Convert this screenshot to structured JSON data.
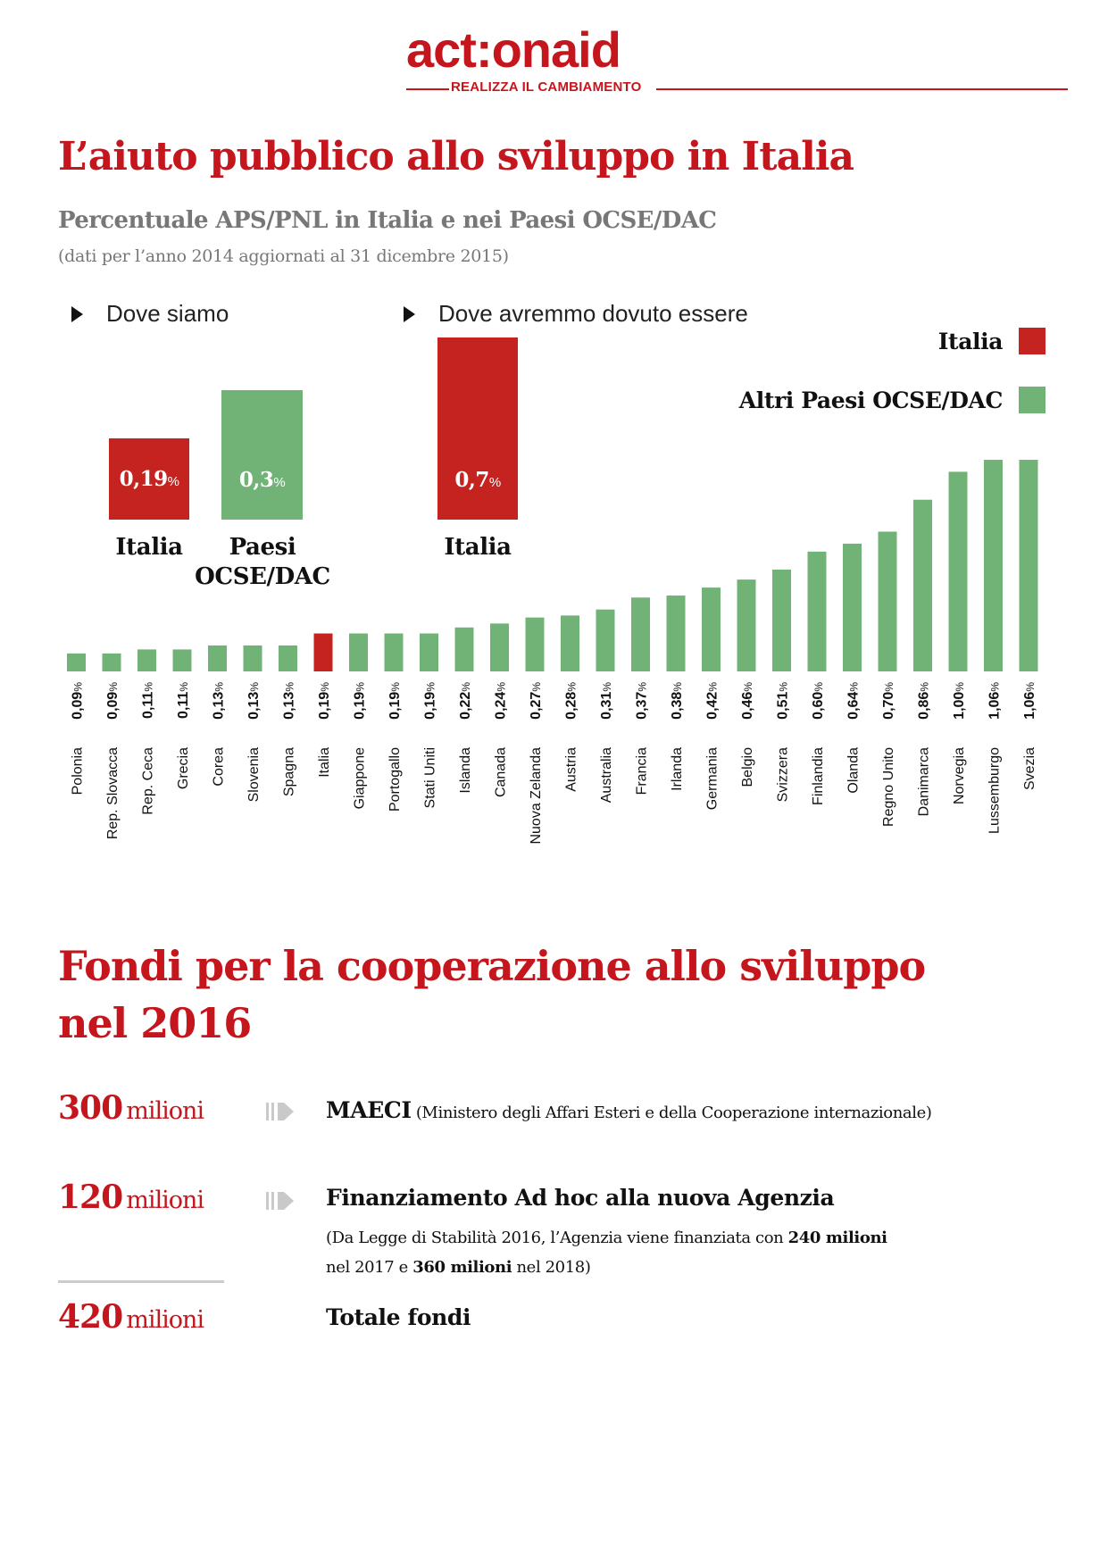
{
  "brand": {
    "logo_text": "act:onaid",
    "tagline": "REALIZZA IL CAMBIAMENTO",
    "color": "#c4161c"
  },
  "section1": {
    "title": "L’aiuto pubblico allo sviluppo in Italia",
    "subtitle": "Percentuale APS/PNL in Italia e nei Paesi OCSE/DAC",
    "note": "(dati per l’anno 2014 aggiornati al 31 dicembre 2015)",
    "label_where_we_are": "Dove siamo",
    "label_where_we_should_be": "Dove avremmo dovuto essere",
    "legend": [
      {
        "label": "Italia",
        "color": "#c4231f"
      },
      {
        "label": "Altri Paesi OCSE/DAC",
        "color": "#71b377"
      }
    ],
    "highlights": [
      {
        "value": "0,19",
        "unit": "%",
        "label": "Italia",
        "color": "#c4231f"
      },
      {
        "value": "0,3",
        "unit": "%",
        "label_line1": "Paesi",
        "label_line2": "OCSE/DAC",
        "color": "#71b377"
      },
      {
        "value": "0,7",
        "unit": "%",
        "label": "Italia",
        "color": "#c4231f"
      }
    ]
  },
  "chart_data": {
    "type": "bar",
    "title": "Percentuale APS/PNL in Italia e nei Paesi OCSE/DAC",
    "unit": "%",
    "highlight_category": "Italia",
    "colors": {
      "highlight": "#c4231f",
      "default": "#71b377"
    },
    "categories": [
      "Polonia",
      "Rep. Slovacca",
      "Rep. Ceca",
      "Grecia",
      "Corea",
      "Slovenia",
      "Spagna",
      "Italia",
      "Giappone",
      "Portogallo",
      "Stati Uniti",
      "Islanda",
      "Canada",
      "Nuova Zelanda",
      "Austria",
      "Australia",
      "Francia",
      "Irlanda",
      "Germania",
      "Belgio",
      "Svizzera",
      "Finlandia",
      "Olanda",
      "Regno Unito",
      "Danimarca",
      "Norvegia",
      "Lussemburgo",
      "Svezia"
    ],
    "values": [
      0.09,
      0.09,
      0.11,
      0.11,
      0.13,
      0.13,
      0.13,
      0.19,
      0.19,
      0.19,
      0.19,
      0.22,
      0.24,
      0.27,
      0.28,
      0.31,
      0.37,
      0.38,
      0.42,
      0.46,
      0.51,
      0.6,
      0.64,
      0.7,
      0.86,
      1.0,
      1.06,
      1.06
    ],
    "value_labels": [
      "0,09",
      "0,09",
      "0,11",
      "0,11",
      "0,13",
      "0,13",
      "0,13",
      "0,19",
      "0,19",
      "0,19",
      "0,19",
      "0,22",
      "0,24",
      "0,27",
      "0,28",
      "0,31",
      "0,37",
      "0,38",
      "0,42",
      "0,46",
      "0,51",
      "0,60",
      "0,64",
      "0,70",
      "0,86",
      "1,00",
      "1,06",
      "1,06"
    ],
    "ylim": [
      0,
      1.06
    ]
  },
  "section2": {
    "title_line1": "Fondi per la cooperazione allo sviluppo",
    "title_line2": "nel 2016",
    "rows": [
      {
        "amount": "300",
        "unit": "milioni",
        "title": "MAECI",
        "detail": "(Ministero degli Affari Esteri e della Cooperazione internazionale)"
      },
      {
        "amount": "120",
        "unit": "milioni",
        "title": "Finanziamento Ad hoc alla nuova Agenzia",
        "sub1_pre": "(Da Legge di Stabilità 2016, l’Agenzia viene finanziata con ",
        "sub1_bold": "240 milioni",
        "sub2_pre": "nel 2017 e ",
        "sub2_bold": "360 milioni",
        "sub2_post": " nel 2018)"
      }
    ],
    "total": {
      "amount": "420",
      "unit": "milioni",
      "label": "Totale fondi"
    }
  }
}
